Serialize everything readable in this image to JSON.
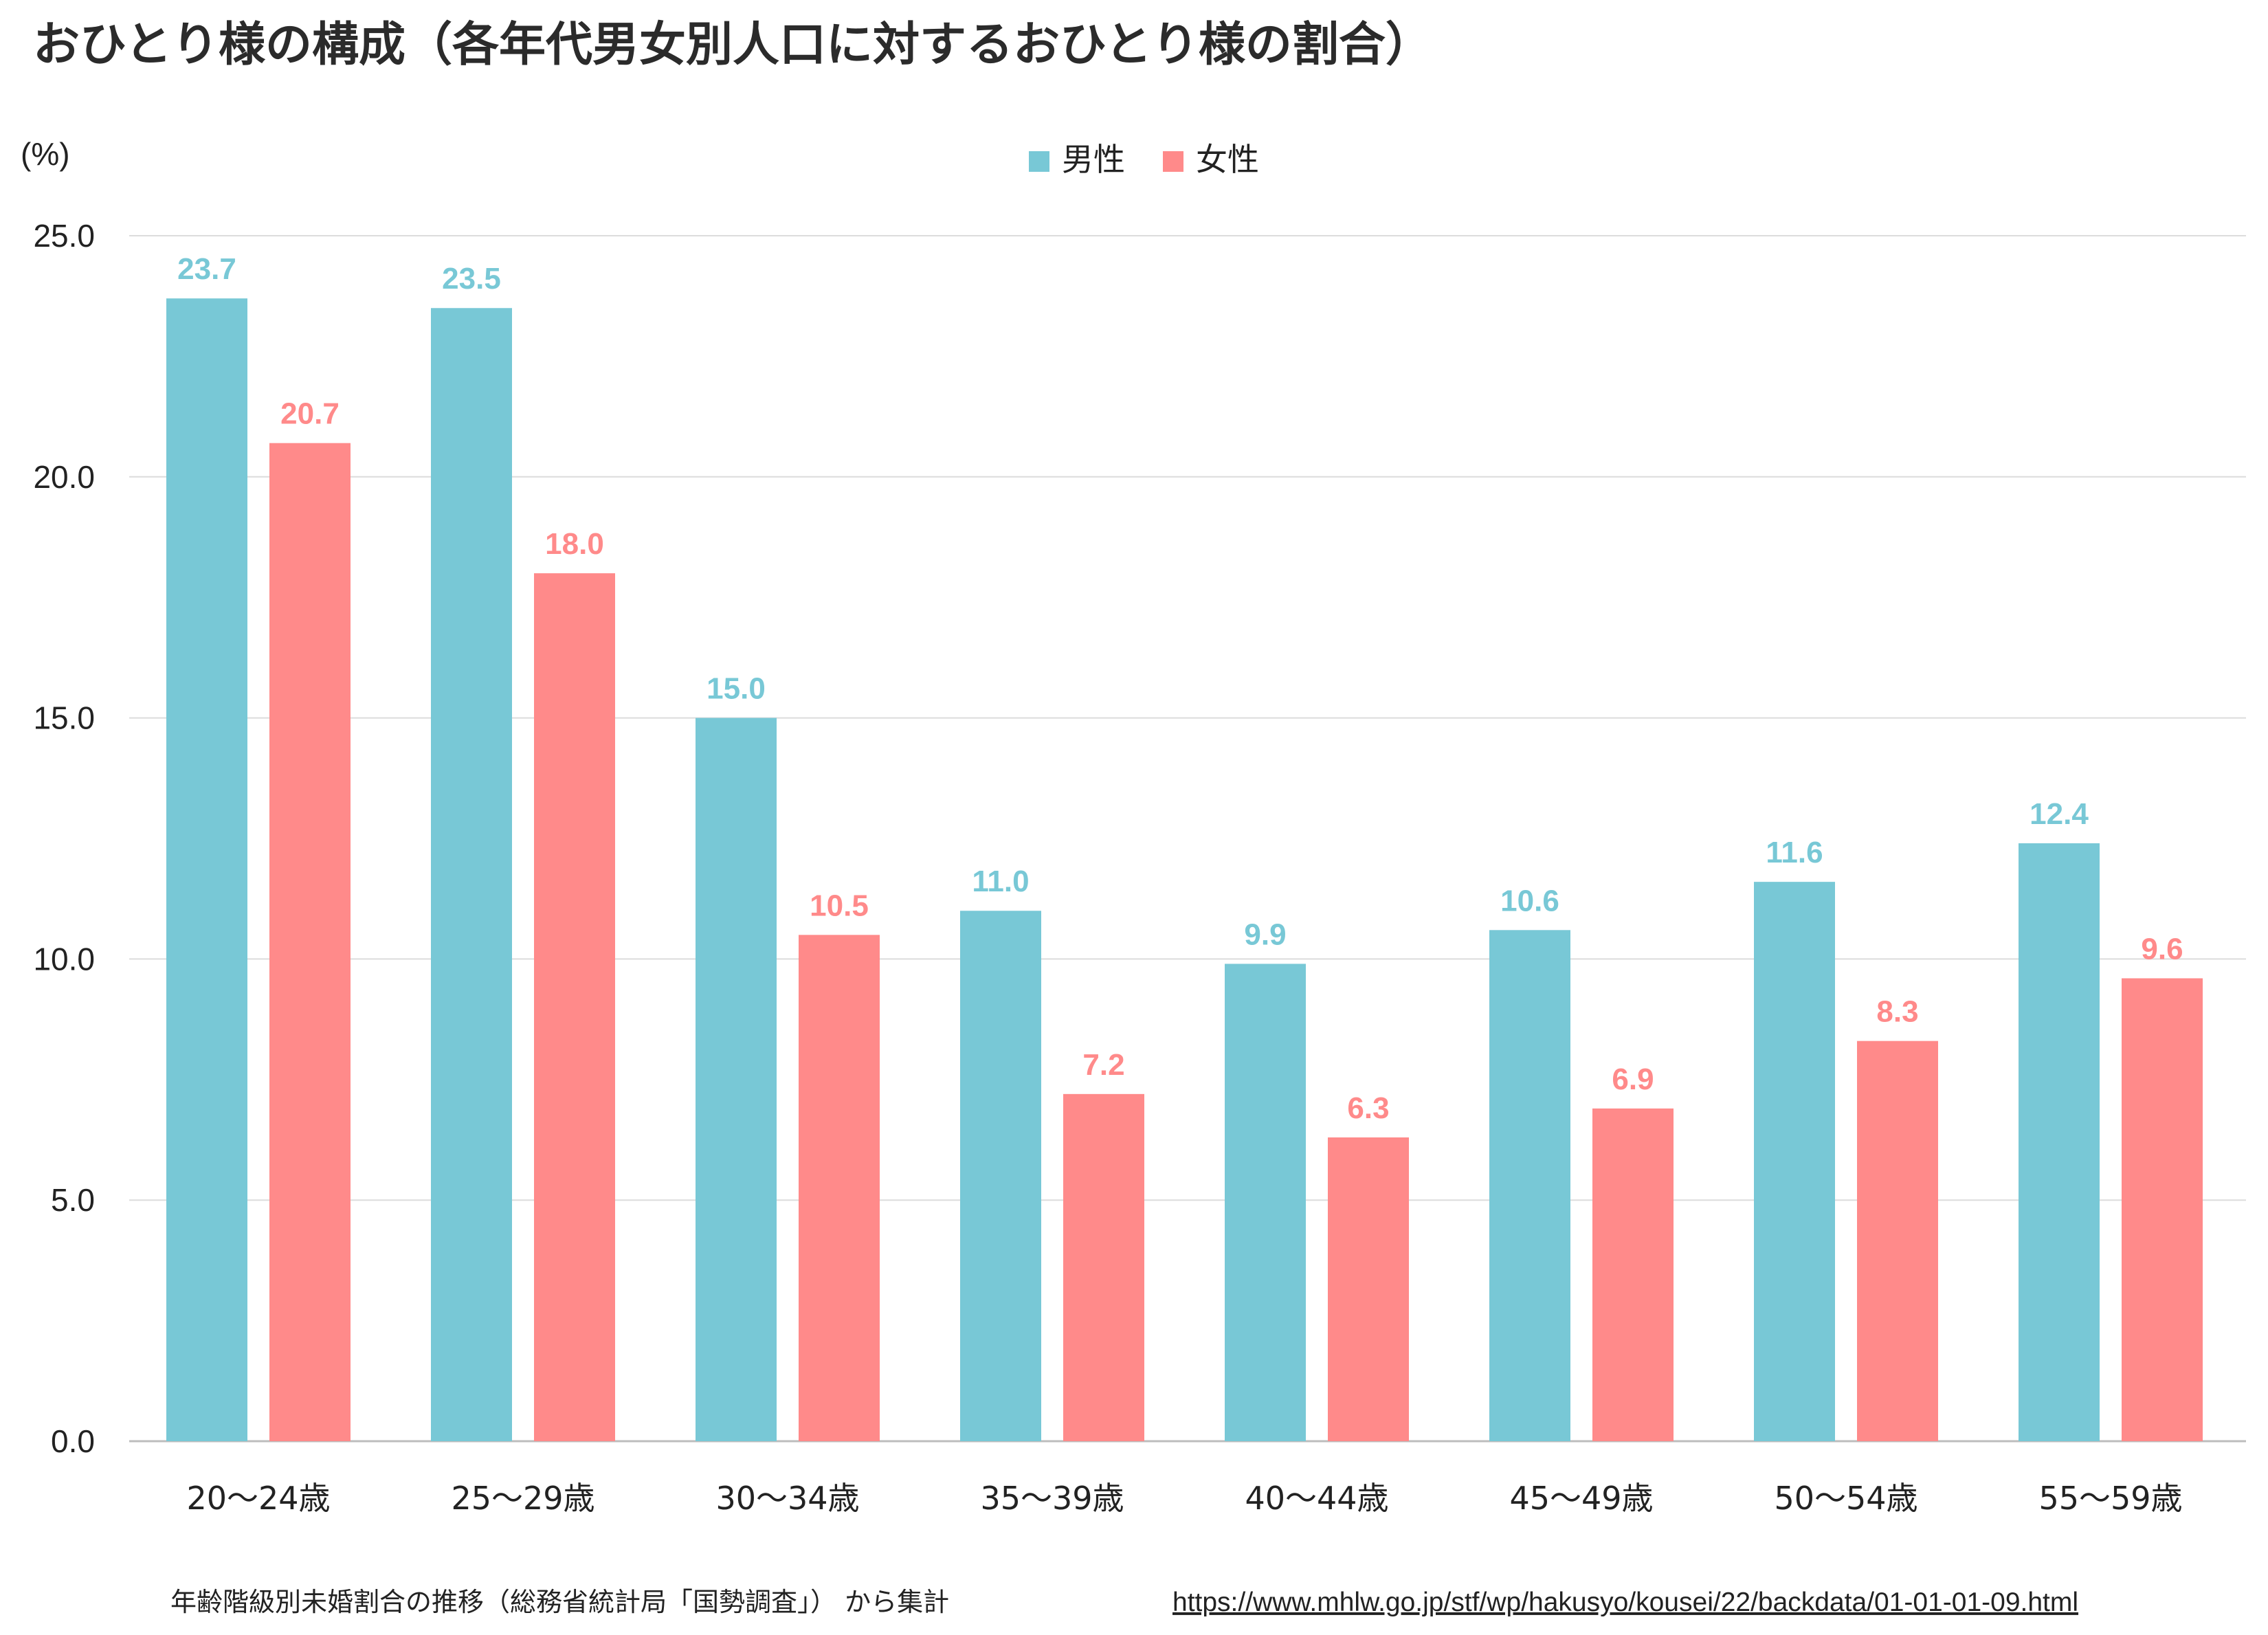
{
  "title": "おひとり様の構成（各年代男女別人口に対するおひとり様の割合）",
  "colors": {
    "male": "#78c8d6",
    "female": "#ff8a8a",
    "grid": "#dcdcdc",
    "text": "#222222",
    "title": "#2b2b2b"
  },
  "legend": {
    "position": "top-center",
    "items": [
      {
        "name": "男性",
        "color": "#78c8d6"
      },
      {
        "name": "女性",
        "color": "#ff8a8a"
      }
    ]
  },
  "source": {
    "text": "年齢階級別未婚割合の推移（総務省統計局「国勢調査」） から集計",
    "url": "https://www.mhlw.go.jp/stf/wp/hakusyo/kousei/22/backdata/01-01-01-09.html"
  },
  "chart_data": {
    "type": "bar",
    "title": "おひとり様の構成（各年代男女別人口に対するおひとり様の割合）",
    "ylabel": "(%)",
    "xlabel": "",
    "ylim": [
      0,
      25
    ],
    "yticks": [
      "0.0",
      "5.0",
      "10.0",
      "15.0",
      "20.0",
      "25.0"
    ],
    "ytick_values": [
      0,
      5,
      10,
      15,
      20,
      25
    ],
    "grid": true,
    "categories": [
      "20～24歳",
      "25～29歳",
      "30～34歳",
      "35～39歳",
      "40～44歳",
      "45～49歳",
      "50～54歳",
      "55～59歳"
    ],
    "series": [
      {
        "name": "男性",
        "values": [
          23.7,
          23.5,
          15.0,
          11.0,
          9.9,
          10.6,
          11.6,
          12.4
        ],
        "labels": [
          "23.7",
          "23.5",
          "15.0",
          "11.0",
          "9.9",
          "10.6",
          "11.6",
          "12.4"
        ]
      },
      {
        "name": "女性",
        "values": [
          20.7,
          18.0,
          10.5,
          7.2,
          6.3,
          6.9,
          8.3,
          9.6
        ],
        "labels": [
          "20.7",
          "18.0",
          "10.5",
          "7.2",
          "6.3",
          "6.9",
          "8.3",
          "9.6"
        ]
      }
    ]
  }
}
